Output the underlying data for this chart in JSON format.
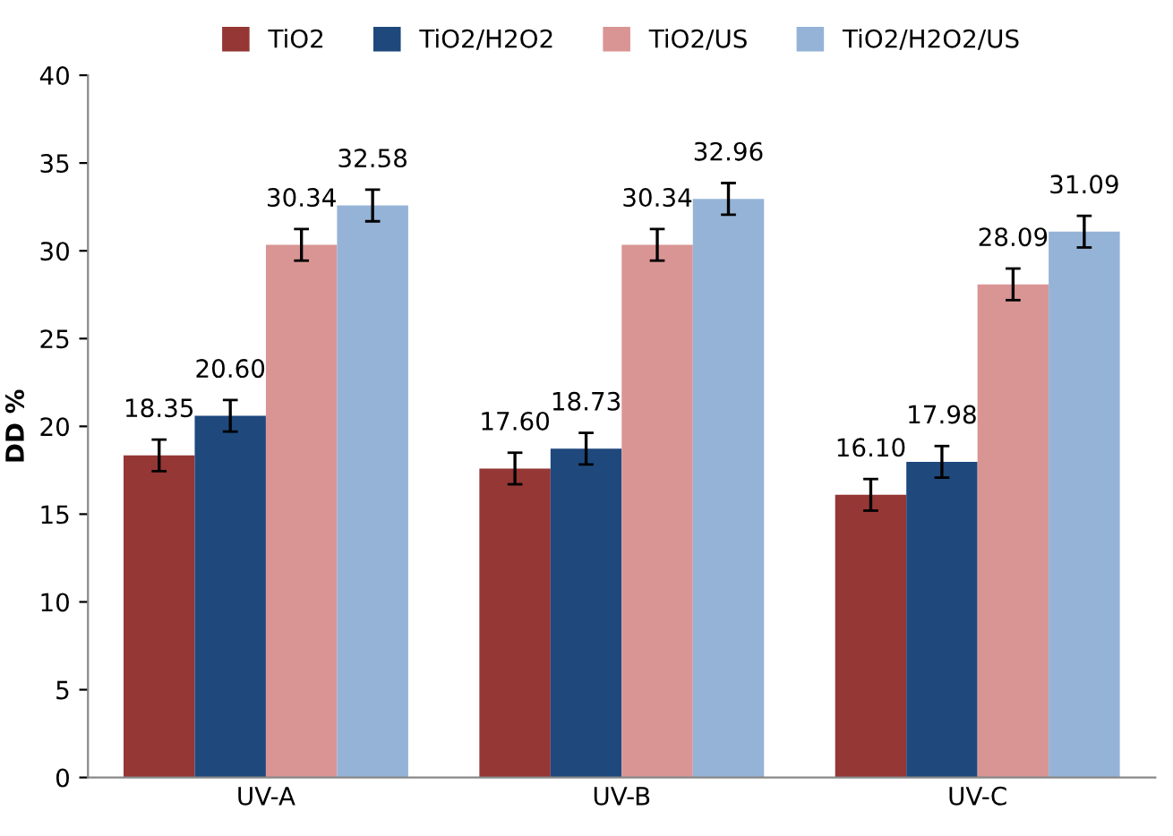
{
  "chart_data": {
    "type": "bar",
    "ylabel": "DD %",
    "categories": [
      "UV-A",
      "UV-B",
      "UV-C"
    ],
    "series": [
      {
        "name": "TiO2",
        "color": "#953735",
        "values": [
          18.35,
          17.6,
          16.1
        ],
        "value_labels": [
          "18.35",
          "17.60",
          "16.10"
        ],
        "errors": [
          0.9,
          0.9,
          0.9
        ]
      },
      {
        "name": "TiO2/H2O2",
        "color": "#1f497d",
        "values": [
          20.6,
          18.73,
          17.98
        ],
        "value_labels": [
          "20.60",
          "18.73",
          "17.98"
        ],
        "errors": [
          0.9,
          0.9,
          0.9
        ]
      },
      {
        "name": "TiO2/US",
        "color": "#d99594",
        "values": [
          30.34,
          30.34,
          28.09
        ],
        "value_labels": [
          "30.34",
          "30.34",
          "28.09"
        ],
        "errors": [
          0.9,
          0.9,
          0.9
        ]
      },
      {
        "name": "TiO2/H2O2/US",
        "color": "#95b3d7",
        "values": [
          32.58,
          32.96,
          31.09
        ],
        "value_labels": [
          "32.58",
          "32.96",
          "31.09"
        ],
        "errors": [
          0.9,
          0.9,
          0.9
        ]
      }
    ],
    "ylim": [
      0,
      40
    ],
    "yticks": [
      0,
      5,
      10,
      15,
      20,
      25,
      30,
      35,
      40
    ],
    "legend": "top",
    "grid": false
  }
}
